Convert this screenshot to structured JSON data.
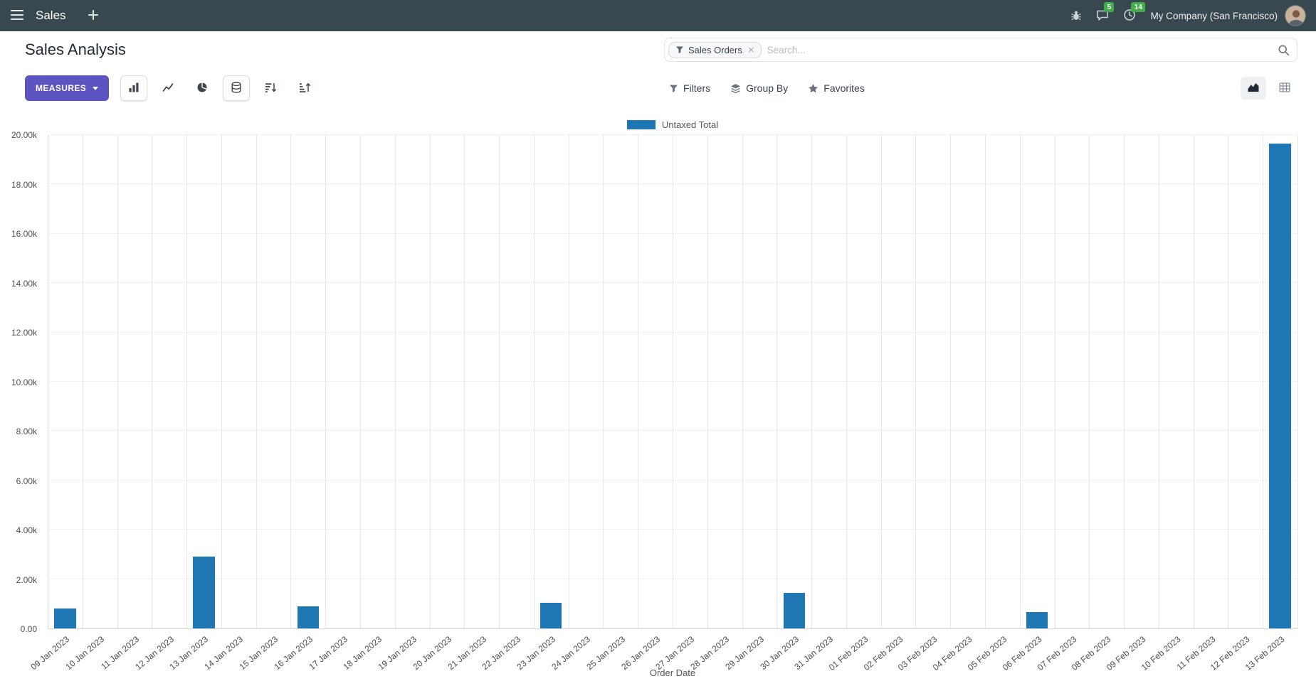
{
  "navbar": {
    "app_name": "Sales",
    "messages_badge": "5",
    "activities_badge": "14",
    "company_name": "My Company (San Francisco)"
  },
  "control_panel": {
    "breadcrumb_title": "Sales Analysis",
    "measures_button": "MEASURES",
    "filters_label": "Filters",
    "group_by_label": "Group By",
    "favorites_label": "Favorites"
  },
  "search": {
    "facet_label": "Sales Orders",
    "facet_remove": "×",
    "placeholder": "Search..."
  },
  "icons": {
    "menu": "☰",
    "new_tab": "+",
    "bug": "🐞",
    "messages": "💬",
    "activities": "🕘",
    "filter_funnel": "⧩",
    "group_by_layers": "≡",
    "favorites_star": "★",
    "bar_chart": "▮▮▮",
    "line_chart": "⟋",
    "pie_chart": "◕",
    "stacked_database": "⛁",
    "sort_descending": "↓",
    "sort_ascending": "↑",
    "graph_view": "▲",
    "pivot_view": "▦",
    "search_magnifier": "🔍"
  },
  "colors": {
    "navbar_bg": "#39474F",
    "primary_button": "#5C54C0",
    "badge_green": "#42B04A",
    "bar_blue": "#1F77B4"
  },
  "chart_data": {
    "type": "bar",
    "title": "",
    "categories": [
      "09 Jan 2023",
      "10 Jan 2023",
      "11 Jan 2023",
      "12 Jan 2023",
      "13 Jan 2023",
      "14 Jan 2023",
      "15 Jan 2023",
      "16 Jan 2023",
      "17 Jan 2023",
      "18 Jan 2023",
      "19 Jan 2023",
      "20 Jan 2023",
      "21 Jan 2023",
      "22 Jan 2023",
      "23 Jan 2023",
      "24 Jan 2023",
      "25 Jan 2023",
      "26 Jan 2023",
      "27 Jan 2023",
      "28 Jan 2023",
      "29 Jan 2023",
      "30 Jan 2023",
      "31 Jan 2023",
      "01 Feb 2023",
      "02 Feb 2023",
      "03 Feb 2023",
      "04 Feb 2023",
      "05 Feb 2023",
      "06 Feb 2023",
      "07 Feb 2023",
      "08 Feb 2023",
      "09 Feb 2023",
      "10 Feb 2023",
      "11 Feb 2023",
      "12 Feb 2023",
      "13 Feb 2023"
    ],
    "series": [
      {
        "name": "Untaxed Total",
        "color": "#1F77B4",
        "values": [
          800,
          0,
          0,
          0,
          2900,
          0,
          0,
          900,
          0,
          0,
          0,
          0,
          0,
          0,
          1050,
          0,
          0,
          0,
          0,
          0,
          0,
          1450,
          0,
          0,
          0,
          0,
          0,
          0,
          650,
          0,
          0,
          0,
          0,
          0,
          0,
          19650
        ]
      }
    ],
    "xlabel": "Order Date",
    "ylabel": "",
    "ylim": [
      0,
      20000
    ],
    "yticks": [
      0,
      2000,
      4000,
      6000,
      8000,
      10000,
      12000,
      14000,
      16000,
      18000,
      20000
    ],
    "ytick_labels": [
      "0.00",
      "2.00k",
      "4.00k",
      "6.00k",
      "8.00k",
      "10.00k",
      "12.00k",
      "14.00k",
      "16.00k",
      "18.00k",
      "20.00k"
    ],
    "legend_position": "top",
    "grid": true,
    "bar_width_frac": 0.62
  }
}
